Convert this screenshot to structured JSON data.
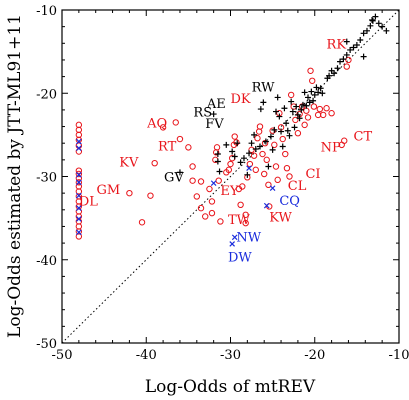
{
  "chart_data": {
    "type": "scatter",
    "title": "",
    "xlabel": "Log-Odds of mtREV",
    "ylabel": "Log-Odds estimated by JTT-ML91+11",
    "xlim": [
      -50,
      -10
    ],
    "ylim": [
      -50,
      -10
    ],
    "x_ticks": [
      -50,
      -40,
      -30,
      -20,
      -10
    ],
    "y_ticks": [
      -50,
      -40,
      -30,
      -20,
      -10
    ],
    "grid": false,
    "reference_line": {
      "from": [
        -50,
        -50
      ],
      "to": [
        -10,
        -10
      ],
      "style": "dotted"
    },
    "series": [
      {
        "marker": "circle",
        "color": "#e8141a",
        "points": [
          [
            -48,
            -23.8
          ],
          [
            -48,
            -24.4
          ],
          [
            -48,
            -25
          ],
          [
            -48,
            -25.6
          ],
          [
            -48,
            -26.3
          ],
          [
            -48,
            -27.0
          ],
          [
            -48,
            -29.3
          ],
          [
            -48,
            -29.7
          ],
          [
            -48,
            -30.2
          ],
          [
            -48,
            -30.7
          ],
          [
            -48,
            -31.2
          ],
          [
            -48,
            -31.8
          ],
          [
            -48,
            -32.4
          ],
          [
            -48,
            -33.0
          ],
          [
            -48,
            -33.6
          ],
          [
            -48,
            -34.2
          ],
          [
            -48,
            -34.8
          ],
          [
            -48,
            -35.4
          ],
          [
            -48,
            -36.0
          ],
          [
            -48,
            -36.6
          ],
          [
            -48,
            -37.2
          ],
          [
            -42,
            -32.0
          ],
          [
            -39.5,
            -32.3
          ],
          [
            -40.5,
            -35.5
          ],
          [
            -39,
            -28.4
          ],
          [
            -38,
            -24.1
          ],
          [
            -36.5,
            -23.5
          ],
          [
            -36,
            -25.5
          ],
          [
            -35,
            -26.5
          ],
          [
            -34.5,
            -28.8
          ],
          [
            -34.5,
            -30.5
          ],
          [
            -34,
            -32.4
          ],
          [
            -33.5,
            -33.8
          ],
          [
            -33.5,
            -30.6
          ],
          [
            -33,
            -34.8
          ],
          [
            -32.5,
            -31.5
          ],
          [
            -32.2,
            -33.0
          ],
          [
            -32.2,
            -34.4
          ],
          [
            -31.8,
            -28.0
          ],
          [
            -31.7,
            -27.1
          ],
          [
            -31.6,
            -26.5
          ],
          [
            -31.4,
            -30.5
          ],
          [
            -31.2,
            -35.4
          ],
          [
            -30.5,
            -29.5
          ],
          [
            -30.2,
            -29.2
          ],
          [
            -30,
            -28.5
          ],
          [
            -29.8,
            -27.8
          ],
          [
            -29.6,
            -26.2
          ],
          [
            -29.5,
            -25.2
          ],
          [
            -29.3,
            -25.9
          ],
          [
            -29,
            -31.5
          ],
          [
            -28.8,
            -33.4
          ],
          [
            -28.6,
            -31.2
          ],
          [
            -28.2,
            -34.6
          ],
          [
            -28.2,
            -35.6
          ],
          [
            -28,
            -30.1
          ],
          [
            -27.7,
            -28.5
          ],
          [
            -27.5,
            -26.8
          ],
          [
            -27.2,
            -27.5
          ],
          [
            -27,
            -29.2
          ],
          [
            -26.8,
            -25.4
          ],
          [
            -26.6,
            -24.6
          ],
          [
            -26.5,
            -24.0
          ],
          [
            -26.2,
            -27.3
          ],
          [
            -26,
            -29.7
          ],
          [
            -25.9,
            -26.0
          ],
          [
            -25.7,
            -28.0
          ],
          [
            -25.5,
            -31.0
          ],
          [
            -25.4,
            -33.6
          ],
          [
            -25,
            -24.5
          ],
          [
            -24.8,
            -26.2
          ],
          [
            -24.6,
            -28.8
          ],
          [
            -24.4,
            -30.4
          ],
          [
            -24.2,
            -22.4
          ],
          [
            -24,
            -24.1
          ],
          [
            -23.8,
            -25.5
          ],
          [
            -23.5,
            -27.3
          ],
          [
            -23.3,
            -29.0
          ],
          [
            -23,
            -30.0
          ],
          [
            -22.8,
            -20.2
          ],
          [
            -22.5,
            -21.6
          ],
          [
            -22.3,
            -23.2
          ],
          [
            -22,
            -24.8
          ],
          [
            -21.8,
            -22.5
          ],
          [
            -21.5,
            -21.6
          ],
          [
            -21.2,
            -23.8
          ],
          [
            -21,
            -22.1
          ],
          [
            -20.8,
            -22.9
          ],
          [
            -20.5,
            -17.3
          ],
          [
            -20.3,
            -18.5
          ],
          [
            -20.1,
            -21.6
          ],
          [
            -19.6,
            -22.6
          ],
          [
            -19.4,
            -21.9
          ],
          [
            -19,
            -22.6
          ],
          [
            -18.6,
            -21.8
          ],
          [
            -18,
            -22.4
          ],
          [
            -16.8,
            -26.2
          ],
          [
            -16.5,
            -25.7
          ],
          [
            -16.2,
            -16.8
          ],
          [
            -16,
            -16.0
          ]
        ]
      },
      {
        "marker": "plus",
        "color": "#000000",
        "points": [
          [
            -36,
            -29.5
          ],
          [
            -32,
            -22.5
          ],
          [
            -31.5,
            -27.3
          ],
          [
            -31.5,
            -28.2
          ],
          [
            -31.3,
            -29.4
          ],
          [
            -30.5,
            -26.2
          ],
          [
            -29.8,
            -27.0
          ],
          [
            -29.5,
            -27.6
          ],
          [
            -29.2,
            -26.0
          ],
          [
            -28.8,
            -28.3
          ],
          [
            -28.4,
            -27.8
          ],
          [
            -28,
            -29.8
          ],
          [
            -27.8,
            -27.2
          ],
          [
            -27.5,
            -26.0
          ],
          [
            -27.2,
            -25.0
          ],
          [
            -27,
            -26.7
          ],
          [
            -26.5,
            -26.4
          ],
          [
            -26.4,
            -21.9
          ],
          [
            -26.1,
            -21.1
          ],
          [
            -25.8,
            -25.8
          ],
          [
            -25.5,
            -28.8
          ],
          [
            -25.2,
            -25.2
          ],
          [
            -25,
            -26.8
          ],
          [
            -24.8,
            -24.4
          ],
          [
            -24.6,
            -22.2
          ],
          [
            -24.4,
            -20.5
          ],
          [
            -24.2,
            -22.8
          ],
          [
            -24,
            -24.6
          ],
          [
            -23.8,
            -26.4
          ],
          [
            -23.6,
            -21.8
          ],
          [
            -23.4,
            -23.6
          ],
          [
            -23.2,
            -24.5
          ],
          [
            -23,
            -25.1
          ],
          [
            -22.8,
            -21.0
          ],
          [
            -22.6,
            -22.2
          ],
          [
            -22.4,
            -24.1
          ],
          [
            -22.2,
            -21.6
          ],
          [
            -22,
            -22.6
          ],
          [
            -21.8,
            -23.0
          ],
          [
            -21.6,
            -22.0
          ],
          [
            -21.4,
            -21.4
          ],
          [
            -21.2,
            -19.9
          ],
          [
            -21,
            -21.5
          ],
          [
            -20.8,
            -20.5
          ],
          [
            -20.6,
            -21.1
          ],
          [
            -20.4,
            -19.8
          ],
          [
            -20.2,
            -20.9
          ],
          [
            -20,
            -20.2
          ],
          [
            -19.8,
            -19.3
          ],
          [
            -19.6,
            -19.9
          ],
          [
            -19.3,
            -19.4
          ],
          [
            -19.1,
            -20.0
          ],
          [
            -18.5,
            -18.2
          ],
          [
            -18.3,
            -17.9
          ],
          [
            -18,
            -17.3
          ],
          [
            -17.7,
            -17.6
          ],
          [
            -17.3,
            -17.0
          ],
          [
            -17,
            -16.2
          ],
          [
            -16.6,
            -15.9
          ],
          [
            -16.2,
            -15.4
          ],
          [
            -15.8,
            -14.8
          ],
          [
            -15.4,
            -14.5
          ],
          [
            -15,
            -14.2
          ],
          [
            -14.6,
            -13.6
          ],
          [
            -14.2,
            -12.8
          ],
          [
            -13.8,
            -12.5
          ],
          [
            -13.4,
            -11.9
          ],
          [
            -13.1,
            -11.3
          ],
          [
            -12.8,
            -10.8
          ],
          [
            -12.4,
            -11.6
          ],
          [
            -12,
            -12.0
          ],
          [
            -11.5,
            -12.5
          ],
          [
            -16.2,
            -13.8
          ],
          [
            -14.2,
            -15.6
          ],
          [
            -13.2,
            -11.2
          ]
        ]
      },
      {
        "marker": "x",
        "color": "#1a2cdc",
        "points": [
          [
            -48,
            -25.8
          ],
          [
            -48,
            -26.6
          ],
          [
            -48,
            -29.8
          ],
          [
            -48,
            -30.7
          ],
          [
            -48,
            -32.3
          ],
          [
            -48,
            -33.8
          ],
          [
            -48,
            -35.1
          ],
          [
            -48,
            -36.7
          ],
          [
            -32,
            -30.8
          ],
          [
            -29.5,
            -37.3
          ],
          [
            -29.8,
            -38.1
          ],
          [
            -27.8,
            -29.0
          ],
          [
            -25,
            -31.4
          ],
          [
            -25.7,
            -33.5
          ]
        ]
      }
    ],
    "annotations": [
      {
        "text": "RK",
        "x": -18.6,
        "y": -14.6,
        "color": "#e8141a"
      },
      {
        "text": "RW",
        "x": -27.5,
        "y": -19.8,
        "color": "#000000"
      },
      {
        "text": "DK",
        "x": -30.0,
        "y": -21.2,
        "color": "#e8141a"
      },
      {
        "text": "AE",
        "x": -32.8,
        "y": -21.8,
        "color": "#000000"
      },
      {
        "text": "RS",
        "x": -34.4,
        "y": -22.8,
        "color": "#000000"
      },
      {
        "text": "FV",
        "x": -33.0,
        "y": -24.2,
        "color": "#000000"
      },
      {
        "text": "AQ",
        "x": -39.9,
        "y": -24.1,
        "color": "#e8141a"
      },
      {
        "text": "RT",
        "x": -38.6,
        "y": -26.9,
        "color": "#e8141a"
      },
      {
        "text": "KV",
        "x": -43.2,
        "y": -28.8,
        "color": "#e8141a"
      },
      {
        "text": "GV",
        "x": -37.9,
        "y": -30.6,
        "color": "#000000"
      },
      {
        "text": "GM",
        "x": -45.9,
        "y": -32.1,
        "color": "#e8141a"
      },
      {
        "text": "DL",
        "x": -48.0,
        "y": -33.5,
        "color": "#e8141a"
      },
      {
        "text": "EY",
        "x": -31.2,
        "y": -32.2,
        "color": "#e8141a"
      },
      {
        "text": "TW",
        "x": -30.3,
        "y": -35.7,
        "color": "#e8141a"
      },
      {
        "text": "NW",
        "x": -29.3,
        "y": -37.8,
        "color": "#1a2cdc"
      },
      {
        "text": "DW",
        "x": -30.3,
        "y": -40.2,
        "color": "#1a2cdc"
      },
      {
        "text": "KW",
        "x": -25.4,
        "y": -35.4,
        "color": "#e8141a"
      },
      {
        "text": "CQ",
        "x": -24.2,
        "y": -33.4,
        "color": "#1a2cdc"
      },
      {
        "text": "CL",
        "x": -23.2,
        "y": -31.6,
        "color": "#e8141a"
      },
      {
        "text": "CI",
        "x": -21.1,
        "y": -30.2,
        "color": "#e8141a"
      },
      {
        "text": "NP",
        "x": -19.3,
        "y": -27.0,
        "color": "#e8141a"
      },
      {
        "text": "CT",
        "x": -15.4,
        "y": -25.7,
        "color": "#e8141a"
      }
    ]
  }
}
